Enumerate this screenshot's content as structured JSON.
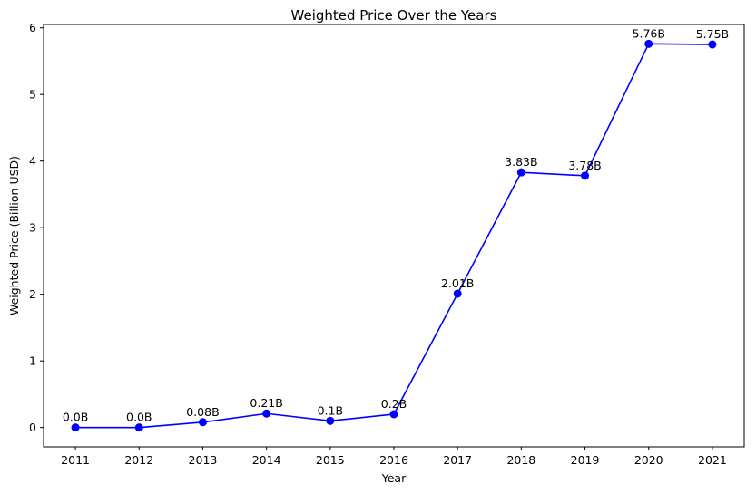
{
  "chart_data": {
    "type": "line",
    "title": "Weighted Price Over the Years",
    "xlabel": "Year",
    "ylabel": "Weighted Price (Billion USD)",
    "categories": [
      "2011",
      "2012",
      "2013",
      "2014",
      "2015",
      "2016",
      "2017",
      "2018",
      "2019",
      "2020",
      "2021"
    ],
    "series": [
      {
        "values": [
          0.0,
          0.0,
          0.08,
          0.21,
          0.1,
          0.2,
          2.01,
          3.83,
          3.78,
          5.76,
          5.75
        ],
        "labels": [
          "0.0B",
          "0.0B",
          "0.08B",
          "0.21B",
          "0.1B",
          "0.2B",
          "2.01B",
          "3.83B",
          "3.78B",
          "5.76B",
          "5.75B"
        ],
        "color": "#0000ff",
        "marker": "circle"
      }
    ],
    "ylim": [
      -0.29,
      6.05
    ],
    "yticks": [
      "0",
      "1",
      "2",
      "3",
      "4",
      "5",
      "6"
    ],
    "grid": false
  }
}
